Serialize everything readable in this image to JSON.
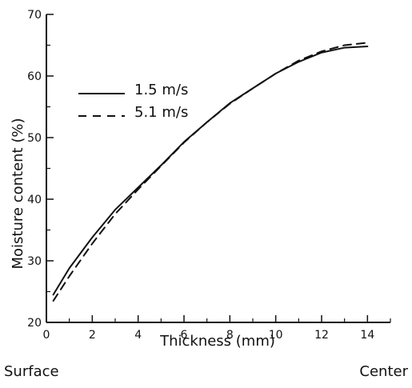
{
  "chart_data": {
    "type": "line",
    "title": "",
    "xlabel": "Thickness (mm)",
    "ylabel": "Moisture content (%)",
    "xlim": [
      0,
      15
    ],
    "ylim": [
      20,
      70
    ],
    "x_ticks": [
      0,
      2,
      4,
      6,
      8,
      10,
      12,
      14
    ],
    "y_ticks": [
      20,
      30,
      40,
      50,
      60,
      70
    ],
    "grid": false,
    "legend_position": "upper-left",
    "footer_left": "Surface",
    "footer_right": "Center",
    "series": [
      {
        "name": "1.5 m/s",
        "line_style": "solid",
        "color": "#111111",
        "x": [
          0.3,
          1,
          2,
          3,
          4,
          5,
          6,
          7,
          8,
          9,
          10,
          11,
          12,
          13,
          14
        ],
        "y": [
          24.5,
          28.8,
          33.8,
          38.3,
          41.9,
          45.5,
          49.3,
          52.5,
          55.6,
          58.0,
          60.4,
          62.3,
          63.8,
          64.6,
          64.8
        ]
      },
      {
        "name": "5.1 m/s",
        "line_style": "dashed",
        "color": "#111111",
        "x": [
          0.3,
          1,
          2,
          3,
          4,
          5,
          6,
          7,
          8,
          9,
          10,
          11,
          12,
          13,
          14
        ],
        "y": [
          23.5,
          27.5,
          32.8,
          37.6,
          41.6,
          45.4,
          49.2,
          52.5,
          55.5,
          58.0,
          60.4,
          62.5,
          64.0,
          65.0,
          65.4
        ]
      }
    ]
  }
}
